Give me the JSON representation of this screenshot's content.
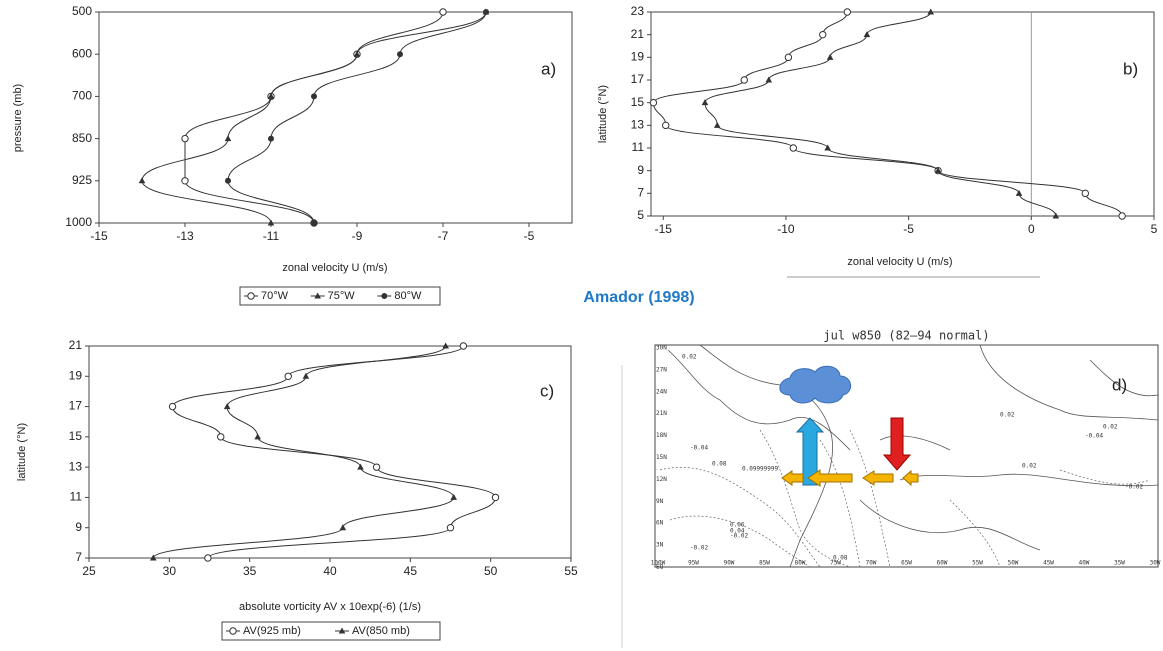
{
  "caption": "Amador (1998)",
  "chart_data": [
    {
      "type": "line",
      "panel_label": "a)",
      "xlabel": "zonal velocity U (m/s)",
      "ylabel": "pressure (mb)",
      "categories": [
        "500",
        "600",
        "700",
        "850",
        "925",
        "1000"
      ],
      "xlim": [
        -15,
        -4
      ],
      "xticks": [
        -15,
        -13,
        -11,
        -9,
        -7,
        -5
      ],
      "series": [
        {
          "name": "70°W",
          "color": "#333333",
          "marker": "open",
          "values": [
            -7,
            -9,
            -11,
            -13,
            -13,
            -10
          ]
        },
        {
          "name": "75°W",
          "color": "#333333",
          "marker": "triangle",
          "values": [
            -6,
            -9,
            -11,
            -12,
            -14,
            -11
          ]
        },
        {
          "name": "80°W",
          "color": "#333333",
          "marker": "dot",
          "values": [
            -6,
            -8,
            -10,
            -11,
            -12,
            -10
          ]
        }
      ]
    },
    {
      "type": "line",
      "panel_label": "b)",
      "xlabel": "zonal velocity U (m/s)",
      "ylabel": "latitude (°N)",
      "y": [
        23,
        21,
        19,
        17,
        15,
        13,
        11,
        9,
        7,
        5
      ],
      "ylim": [
        5,
        23
      ],
      "yticks": [
        5,
        7,
        9,
        11,
        13,
        15,
        17,
        19,
        21,
        23
      ],
      "xlim": [
        -15.5,
        5
      ],
      "xticks": [
        -15,
        -10,
        -5,
        0,
        5
      ],
      "zero_line": true,
      "series": [
        {
          "color": "#333333",
          "marker": "open",
          "values": [
            -7.5,
            -8.5,
            -9.9,
            -11.7,
            -15.4,
            -14.9,
            -9.7,
            -3.8,
            2.2,
            3.7
          ]
        },
        {
          "color": "#333333",
          "marker": "triangle",
          "values": [
            -4.1,
            -6.7,
            -8.2,
            -10.7,
            -13.3,
            -12.8,
            -8.3,
            -3.8,
            -0.5,
            1
          ]
        }
      ]
    },
    {
      "type": "line",
      "panel_label": "c)",
      "xlabel": "absolute vorticity AV x 10exp(-6) (1/s)",
      "ylabel": "latitude (°N)",
      "y": [
        21,
        19,
        17,
        15,
        13,
        11,
        9,
        7
      ],
      "ylim": [
        7,
        21
      ],
      "yticks": [
        7,
        9,
        11,
        13,
        15,
        17,
        19,
        21
      ],
      "xlim": [
        25,
        55
      ],
      "xticks": [
        25,
        30,
        35,
        40,
        45,
        50,
        55
      ],
      "series": [
        {
          "name": "AV(925 mb)",
          "color": "#333333",
          "marker": "open",
          "values": [
            48.3,
            37.4,
            30.2,
            33.2,
            42.9,
            50.3,
            47.5,
            32.4
          ]
        },
        {
          "name": "AV(850 mb)",
          "color": "#333333",
          "marker": "triangle",
          "values": [
            47.2,
            38.5,
            33.6,
            35.5,
            41.9,
            47.7,
            40.8,
            29.0
          ]
        }
      ]
    },
    {
      "type": "map",
      "panel_label": "d)",
      "title": "jul w850 (82–94 normal)",
      "ytick_labels": [
        "30N",
        "27N",
        "24N",
        "21N",
        "18N",
        "15N",
        "12N",
        "9N",
        "6N",
        "3N",
        "EQ"
      ],
      "xtick_labels": [
        "100W",
        "95W",
        "90W",
        "85W",
        "80W",
        "75W",
        "70W",
        "65W",
        "60W",
        "55W",
        "50W",
        "45W",
        "40W",
        "35W",
        "30W"
      ],
      "contour_labels": [
        "0.02",
        "-0.04",
        "0.08",
        "0.09999999",
        "0.06",
        "0.04",
        "-0.02",
        "0.02",
        "-0.04",
        "0.02",
        "0.02",
        "-0.02",
        "-0.02",
        "0.08"
      ]
    }
  ]
}
